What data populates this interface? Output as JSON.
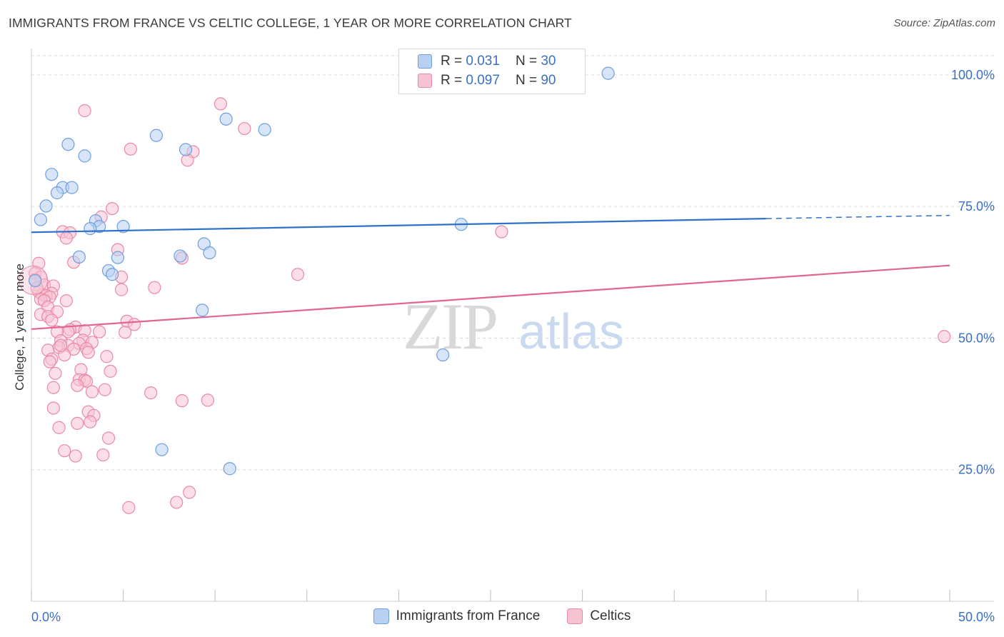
{
  "title": "IMMIGRANTS FROM FRANCE VS CELTIC COLLEGE, 1 YEAR OR MORE CORRELATION CHART",
  "source": "Source: ZipAtlas.com",
  "watermark": {
    "zip": "ZIP",
    "atlas": "atlas"
  },
  "colors": {
    "blue_fill": "#b8d0f2",
    "blue_stroke": "#6e9fdc",
    "blue_line": "#2f72c9",
    "pink_fill": "#f7c3d3",
    "pink_stroke": "#e889a7",
    "pink_line": "#e0668f",
    "tick_text": "#3a6fc4",
    "grid": "#dddddd"
  },
  "legend": {
    "r_label": "R =",
    "n_label": "N =",
    "blue_r": "0.031",
    "blue_n": "30",
    "pink_r": "0.097",
    "pink_n": "90"
  },
  "chart_data": {
    "type": "scatter",
    "title": "IMMIGRANTS FROM FRANCE VS CELTIC COLLEGE, 1 YEAR OR MORE CORRELATION CHART",
    "xlabel": "",
    "ylabel": "College, 1 year or more",
    "xlim": [
      0,
      50
    ],
    "ylim": [
      0,
      105
    ],
    "x_ticks": [
      "0.0%",
      "50.0%"
    ],
    "y_ticks": [
      {
        "value": 25,
        "label": "25.0%"
      },
      {
        "value": 50,
        "label": "50.0%"
      },
      {
        "value": 75,
        "label": "75.0%"
      },
      {
        "value": 100,
        "label": "100.0%"
      }
    ],
    "series": [
      {
        "name": "Immigrants from France",
        "color": "blue",
        "trend": {
          "x0": 0,
          "y0": 70.1,
          "x1": 40,
          "y1": 72.7,
          "dash_to_x": 50,
          "dash_to_y": 73.3
        },
        "points": [
          [
            31.4,
            100.3
          ],
          [
            10.6,
            91.6
          ],
          [
            12.7,
            89.6
          ],
          [
            6.8,
            88.5
          ],
          [
            2.0,
            86.8
          ],
          [
            8.4,
            85.8
          ],
          [
            2.9,
            84.6
          ],
          [
            1.1,
            81.1
          ],
          [
            1.7,
            78.6
          ],
          [
            2.2,
            78.6
          ],
          [
            1.4,
            77.6
          ],
          [
            0.8,
            75.1
          ],
          [
            0.5,
            72.5
          ],
          [
            3.5,
            72.3
          ],
          [
            3.7,
            71.2
          ],
          [
            5.0,
            71.2
          ],
          [
            3.2,
            70.8
          ],
          [
            9.4,
            67.9
          ],
          [
            2.6,
            65.4
          ],
          [
            4.7,
            65.3
          ],
          [
            8.1,
            65.6
          ],
          [
            9.7,
            66.2
          ],
          [
            4.2,
            62.8
          ],
          [
            4.4,
            62.1
          ],
          [
            0.2,
            60.9
          ],
          [
            23.4,
            71.6
          ],
          [
            9.3,
            55.3
          ],
          [
            22.4,
            46.8
          ],
          [
            7.1,
            28.8
          ],
          [
            10.8,
            25.2
          ]
        ]
      },
      {
        "name": "Celtics",
        "color": "pink",
        "trend": {
          "x0": 0,
          "y0": 51.7,
          "x1": 50,
          "y1": 63.8
        },
        "points": [
          [
            10.3,
            94.5
          ],
          [
            2.9,
            93.2
          ],
          [
            11.6,
            89.8
          ],
          [
            5.4,
            85.9
          ],
          [
            8.8,
            85.4
          ],
          [
            8.5,
            83.8
          ],
          [
            4.4,
            74.6
          ],
          [
            3.8,
            73.0
          ],
          [
            1.7,
            70.2
          ],
          [
            2.1,
            70.0
          ],
          [
            1.9,
            69.0
          ],
          [
            25.6,
            70.2
          ],
          [
            4.7,
            66.8
          ],
          [
            8.2,
            65.2
          ],
          [
            2.3,
            64.4
          ],
          [
            0.4,
            64.2
          ],
          [
            0.2,
            62.3
          ],
          [
            0.5,
            61.6
          ],
          [
            14.5,
            62.1
          ],
          [
            4.9,
            61.6
          ],
          [
            0.2,
            61.1
          ],
          [
            0.7,
            60.1
          ],
          [
            1.2,
            59.9
          ],
          [
            6.7,
            59.6
          ],
          [
            4.9,
            59.2
          ],
          [
            0.4,
            58.8
          ],
          [
            1.1,
            58.5
          ],
          [
            0.6,
            58.2
          ],
          [
            0.8,
            58.1
          ],
          [
            1.0,
            57.8
          ],
          [
            0.5,
            57.4
          ],
          [
            0.7,
            57.1
          ],
          [
            1.9,
            57.1
          ],
          [
            0.9,
            55.9
          ],
          [
            1.4,
            55.0
          ],
          [
            0.5,
            54.5
          ],
          [
            0.9,
            54.1
          ],
          [
            1.1,
            53.4
          ],
          [
            5.2,
            53.2
          ],
          [
            5.6,
            52.6
          ],
          [
            2.4,
            52.1
          ],
          [
            2.1,
            51.6
          ],
          [
            2.9,
            51.4
          ],
          [
            2.0,
            51.2
          ],
          [
            1.4,
            51.2
          ],
          [
            3.7,
            51.2
          ],
          [
            5.1,
            51.1
          ],
          [
            2.8,
            49.6
          ],
          [
            1.6,
            49.5
          ],
          [
            3.3,
            49.2
          ],
          [
            2.6,
            49.0
          ],
          [
            2.0,
            48.6
          ],
          [
            1.5,
            48.2
          ],
          [
            3.0,
            48.0
          ],
          [
            2.3,
            47.9
          ],
          [
            0.9,
            47.7
          ],
          [
            3.1,
            47.3
          ],
          [
            1.8,
            46.8
          ],
          [
            4.1,
            46.5
          ],
          [
            1.1,
            46.0
          ],
          [
            1.0,
            45.5
          ],
          [
            2.7,
            44.0
          ],
          [
            4.3,
            43.7
          ],
          [
            1.3,
            43.3
          ],
          [
            2.6,
            42.1
          ],
          [
            2.9,
            42.0
          ],
          [
            3.0,
            41.8
          ],
          [
            2.5,
            41.0
          ],
          [
            1.2,
            40.6
          ],
          [
            4.0,
            40.2
          ],
          [
            3.3,
            39.8
          ],
          [
            6.5,
            39.6
          ],
          [
            8.2,
            38.1
          ],
          [
            9.6,
            38.2
          ],
          [
            1.2,
            36.7
          ],
          [
            3.1,
            36.0
          ],
          [
            3.4,
            35.3
          ],
          [
            3.2,
            34.1
          ],
          [
            2.5,
            33.8
          ],
          [
            1.5,
            33.0
          ],
          [
            4.2,
            31.0
          ],
          [
            1.8,
            28.6
          ],
          [
            2.4,
            27.6
          ],
          [
            3.9,
            27.8
          ],
          [
            8.6,
            20.7
          ],
          [
            7.9,
            18.8
          ],
          [
            5.3,
            17.8
          ],
          [
            49.7,
            50.3
          ],
          [
            0.3,
            59.5
          ],
          [
            1.6,
            48.6
          ]
        ]
      }
    ],
    "legend_position": "top-center"
  }
}
